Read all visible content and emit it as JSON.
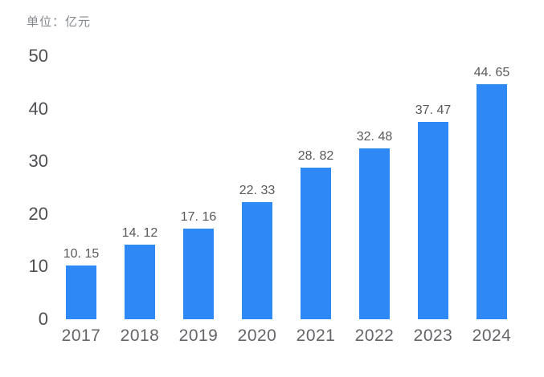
{
  "chart_data": {
    "type": "bar",
    "title": "",
    "unit_label": "单位：亿元",
    "xlabel": "",
    "ylabel": "",
    "categories": [
      "2017",
      "2018",
      "2019",
      "2020",
      "2021",
      "2022",
      "2023",
      "2024"
    ],
    "values": [
      10.15,
      14.12,
      17.16,
      22.33,
      28.82,
      32.48,
      37.47,
      44.65
    ],
    "value_labels": [
      "10. 15",
      "14. 12",
      "17. 16",
      "22. 33",
      "28. 82",
      "32. 48",
      "37. 47",
      "44. 65"
    ],
    "yticks": [
      0,
      10,
      20,
      30,
      40,
      50
    ],
    "ylim": [
      0,
      50
    ],
    "grid": false,
    "legend_position": "none",
    "bar_color": "#2E88F6",
    "background_color": "#FFFFFF",
    "value_label_color": "#58595B",
    "tick_label_color": "#4D4F52",
    "unit_label_color": "#85898E"
  }
}
